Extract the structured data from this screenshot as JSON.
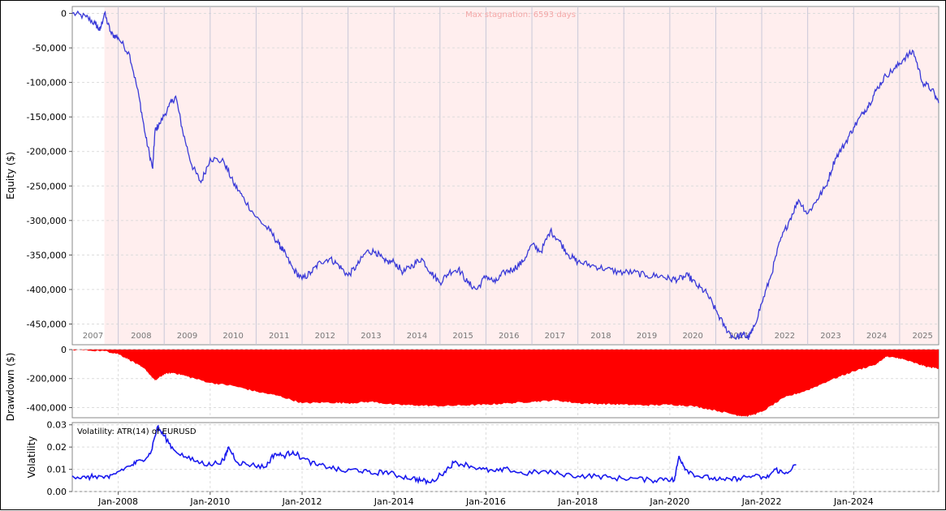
{
  "chart_data": [
    {
      "type": "line",
      "ylabel": "Equity ($)",
      "ylim": [
        -480000,
        10000
      ],
      "xlim": [
        2007.0,
        2025.85
      ],
      "yticks": [
        0,
        -50000,
        -100000,
        -150000,
        -200000,
        -250000,
        -300000,
        -350000,
        -400000,
        -450000
      ],
      "ytick_labels": [
        "0",
        "-50,000",
        "-100,000",
        "-150,000",
        "-200,000",
        "-250,000",
        "-300,000",
        "-350,000",
        "-400,000",
        "-450,000"
      ],
      "year_labels": [
        "2007",
        "2008",
        "2009",
        "2010",
        "2011",
        "2012",
        "2013",
        "2014",
        "2015",
        "2016",
        "2017",
        "2018",
        "2019",
        "2020",
        "2021",
        "2022",
        "2023",
        "2024",
        "2025"
      ],
      "annotation": "Max stagnation: 6593 days",
      "stagnation_start": 2007.7,
      "line_color": "#3a3ad8",
      "stagnation_color": "#ffeeee",
      "grid": true,
      "series": [
        {
          "x": [
            2007.0,
            2007.3,
            2007.5,
            2007.6,
            2007.7,
            2007.85,
            2008.0,
            2008.25,
            2008.45,
            2008.6,
            2008.75,
            2008.8,
            2008.9,
            2009.1,
            2009.25,
            2009.4,
            2009.6,
            2009.8,
            2010.0,
            2010.3,
            2010.5,
            2010.7,
            2011.0,
            2011.3,
            2011.5,
            2011.6,
            2011.8,
            2012.0,
            2012.2,
            2012.4,
            2012.6,
            2012.8,
            2013.0,
            2013.2,
            2013.4,
            2013.6,
            2013.8,
            2014.0,
            2014.2,
            2014.4,
            2014.6,
            2014.8,
            2015.0,
            2015.2,
            2015.4,
            2015.6,
            2015.8,
            2016.0,
            2016.2,
            2016.4,
            2016.6,
            2016.8,
            2017.0,
            2017.2,
            2017.4,
            2017.6,
            2017.8,
            2018.0,
            2018.3,
            2018.6,
            2018.9,
            2019.2,
            2019.5,
            2019.8,
            2020.0,
            2020.2,
            2020.4,
            2020.6,
            2020.8,
            2021.0,
            2021.2,
            2021.4,
            2021.6,
            2021.7,
            2021.8,
            2022.0,
            2022.2,
            2022.4,
            2022.6,
            2022.8,
            2023.0,
            2023.2,
            2023.4,
            2023.6,
            2023.8,
            2024.0,
            2024.2,
            2024.35,
            2024.5,
            2024.7,
            2024.9,
            2025.1,
            2025.3,
            2025.5,
            2025.7,
            2025.85
          ],
          "y": [
            0,
            -5000,
            -15000,
            -25000,
            0,
            -30000,
            -35000,
            -60000,
            -120000,
            -180000,
            -225000,
            -170000,
            -160000,
            -135000,
            -120000,
            -170000,
            -220000,
            -245000,
            -210000,
            -215000,
            -245000,
            -265000,
            -295000,
            -315000,
            -335000,
            -345000,
            -370000,
            -385000,
            -375000,
            -360000,
            -355000,
            -365000,
            -380000,
            -365000,
            -345000,
            -345000,
            -360000,
            -360000,
            -375000,
            -365000,
            -355000,
            -375000,
            -390000,
            -375000,
            -370000,
            -390000,
            -400000,
            -380000,
            -390000,
            -375000,
            -370000,
            -360000,
            -335000,
            -345000,
            -315000,
            -330000,
            -350000,
            -360000,
            -365000,
            -370000,
            -375000,
            -375000,
            -380000,
            -380000,
            -385000,
            -385000,
            -380000,
            -395000,
            -405000,
            -430000,
            -455000,
            -470000,
            -465000,
            -470000,
            -460000,
            -420000,
            -380000,
            -330000,
            -300000,
            -270000,
            -290000,
            -270000,
            -250000,
            -210000,
            -190000,
            -165000,
            -145000,
            -130000,
            -110000,
            -90000,
            -80000,
            -65000,
            -55000,
            -100000,
            -110000,
            -130000
          ]
        }
      ]
    },
    {
      "type": "area",
      "ylabel": "Drawdown ($)",
      "ylim": [
        -470000,
        0
      ],
      "yticks": [
        0,
        -200000,
        -400000
      ],
      "ytick_labels": [
        "0",
        "-200,000",
        "-400,000"
      ],
      "fill_color": "#ff0000",
      "grid": true,
      "series": [
        {
          "x": [
            2007.0,
            2007.7,
            2008.0,
            2008.3,
            2008.6,
            2008.8,
            2009.0,
            2009.2,
            2009.5,
            2010.0,
            2010.5,
            2011.0,
            2011.5,
            2012.0,
            2012.5,
            2013.0,
            2013.5,
            2014.0,
            2014.5,
            2015.0,
            2015.5,
            2016.0,
            2016.5,
            2017.0,
            2017.5,
            2018.0,
            2018.5,
            2019.0,
            2019.5,
            2020.0,
            2020.5,
            2021.0,
            2021.5,
            2021.7,
            2022.0,
            2022.5,
            2023.0,
            2023.5,
            2024.0,
            2024.5,
            2024.7,
            2025.0,
            2025.3,
            2025.6,
            2025.85
          ],
          "y": [
            0,
            -10000,
            -30000,
            -80000,
            -140000,
            -215000,
            -170000,
            -160000,
            -185000,
            -230000,
            -250000,
            -290000,
            -320000,
            -370000,
            -365000,
            -370000,
            -360000,
            -380000,
            -385000,
            -390000,
            -385000,
            -380000,
            -370000,
            -360000,
            -350000,
            -370000,
            -375000,
            -380000,
            -385000,
            -380000,
            -390000,
            -420000,
            -455000,
            -460000,
            -430000,
            -330000,
            -280000,
            -210000,
            -150000,
            -100000,
            -50000,
            -60000,
            -90000,
            -120000,
            -130000
          ]
        }
      ]
    },
    {
      "type": "line",
      "ylabel": "Volatility",
      "title": "Volatility: ATR(14) of EURUSD",
      "ylim": [
        0,
        0.031
      ],
      "yticks": [
        0.0,
        0.01,
        0.02,
        0.03
      ],
      "ytick_labels": [
        "0.00",
        "0.01",
        "0.02",
        "0.03"
      ],
      "xtick_labels": [
        "Jan-2008",
        "Jan-2010",
        "Jan-2012",
        "Jan-2014",
        "Jan-2016",
        "Jan-2018",
        "Jan-2020",
        "Jan-2022",
        "Jan-2024"
      ],
      "xtick_positions": [
        2008.0,
        2010.0,
        2012.0,
        2014.0,
        2016.0,
        2018.0,
        2020.0,
        2022.0,
        2024.0
      ],
      "line_color": "#1a1aee",
      "grid": true,
      "series": [
        {
          "x": [
            2007.0,
            2007.3,
            2007.5,
            2007.8,
            2008.0,
            2008.3,
            2008.5,
            2008.7,
            2008.85,
            2009.0,
            2009.2,
            2009.5,
            2009.8,
            2010.0,
            2010.3,
            2010.4,
            2010.6,
            2010.9,
            2011.2,
            2011.4,
            2011.6,
            2011.8,
            2012.0,
            2012.3,
            2012.6,
            2012.9,
            2013.2,
            2013.5,
            2013.8,
            2014.1,
            2014.4,
            2014.6,
            2014.8,
            2015.1,
            2015.3,
            2015.6,
            2015.9,
            2016.2,
            2016.5,
            2016.8,
            2017.2,
            2017.6,
            2018.0,
            2018.4,
            2018.8,
            2019.2,
            2019.6,
            2019.9,
            2020.1,
            2020.2,
            2020.35,
            2020.6,
            2020.9,
            2021.2,
            2021.5,
            2021.8,
            2022.1,
            2022.3,
            2022.5,
            2022.75
          ],
          "y": [
            0.007,
            0.006,
            0.007,
            0.006,
            0.009,
            0.012,
            0.014,
            0.017,
            0.029,
            0.025,
            0.019,
            0.015,
            0.013,
            0.012,
            0.014,
            0.02,
            0.013,
            0.012,
            0.011,
            0.017,
            0.016,
            0.018,
            0.015,
            0.012,
            0.011,
            0.009,
            0.01,
            0.008,
            0.009,
            0.007,
            0.006,
            0.005,
            0.004,
            0.009,
            0.013,
            0.012,
            0.01,
            0.009,
            0.01,
            0.008,
            0.009,
            0.008,
            0.007,
            0.007,
            0.006,
            0.006,
            0.005,
            0.006,
            0.005,
            0.016,
            0.01,
            0.007,
            0.006,
            0.005,
            0.006,
            0.007,
            0.006,
            0.01,
            0.008,
            0.012
          ]
        }
      ]
    }
  ]
}
